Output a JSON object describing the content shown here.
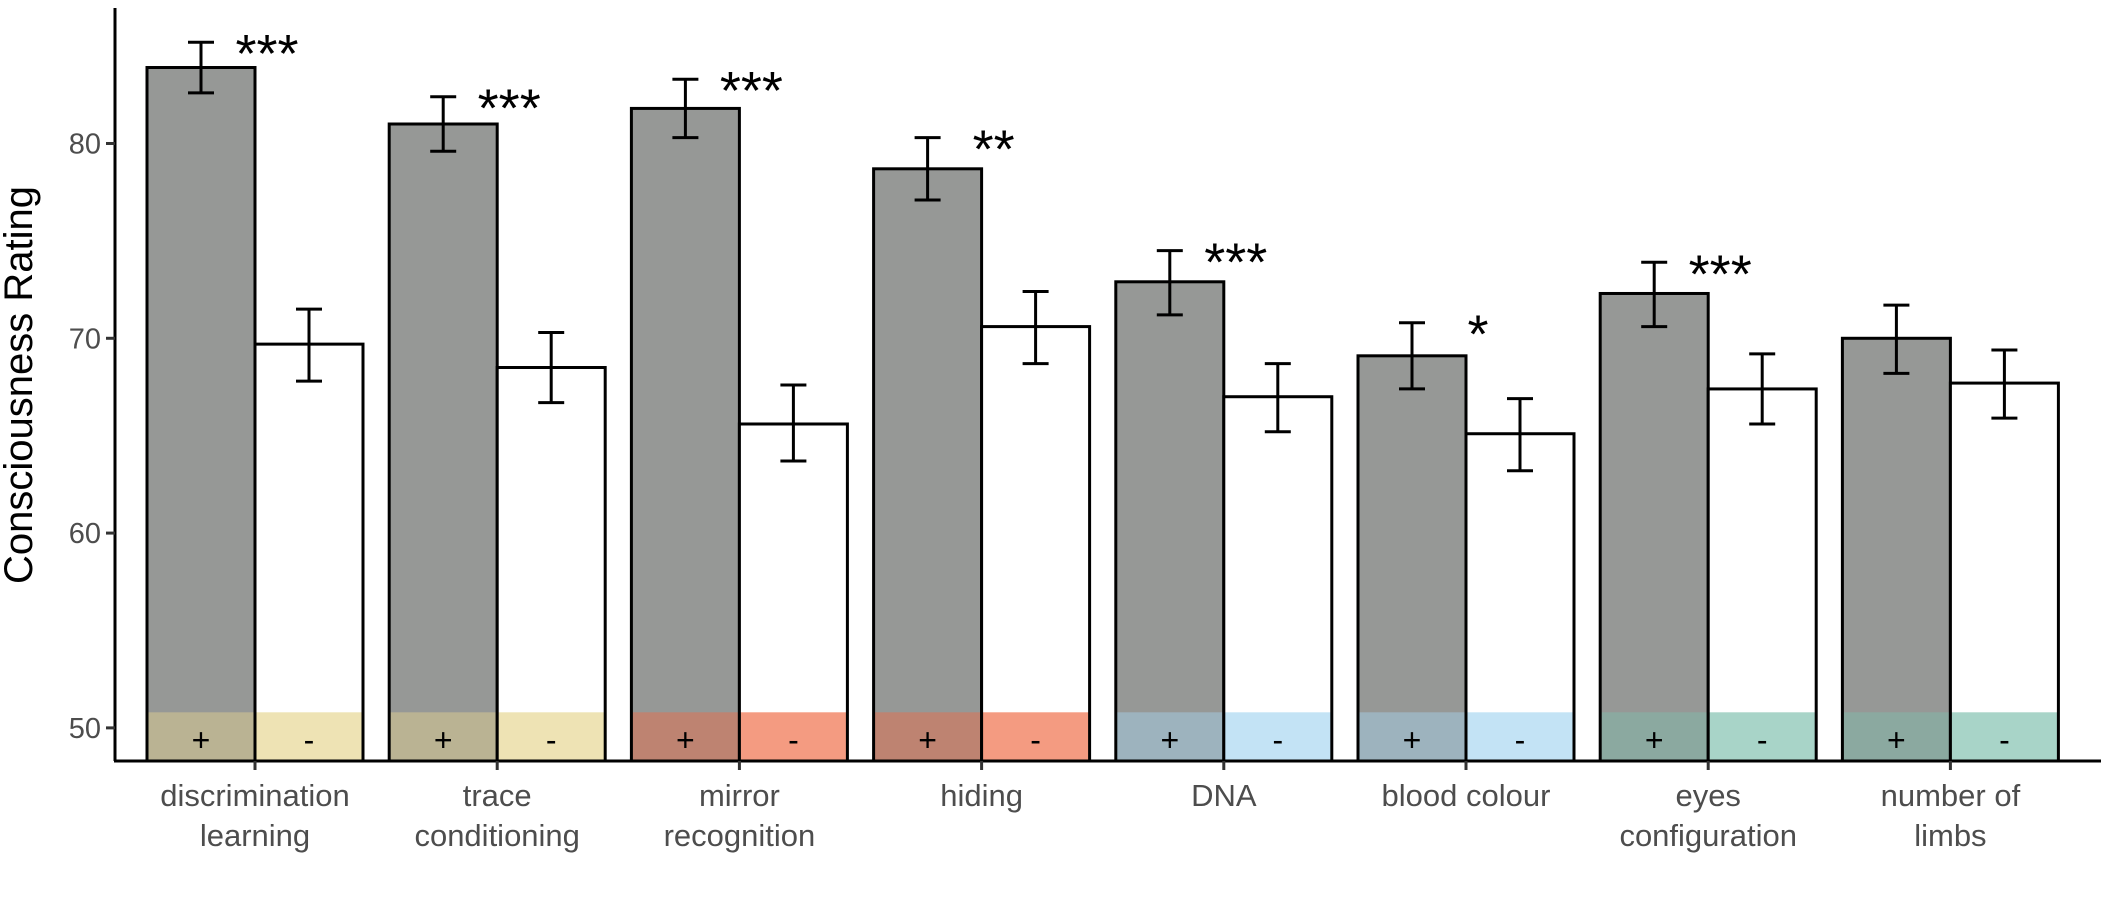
{
  "chart_data": {
    "type": "bar",
    "ylabel": "Consciousness Rating",
    "xlabel": "",
    "ylim": [
      48.3,
      86.8
    ],
    "yticks": [
      50,
      60,
      70,
      80
    ],
    "grid": false,
    "legend": "none",
    "categories": [
      {
        "lines": [
          "discrimination",
          "learning"
        ],
        "strip_color": "#E6D590"
      },
      {
        "lines": [
          "trace",
          "conditioning"
        ],
        "strip_color": "#E6D590"
      },
      {
        "lines": [
          "mirror",
          "recognition"
        ],
        "strip_color": "#EF6B45"
      },
      {
        "lines": [
          "hiding"
        ],
        "strip_color": "#EF6B45"
      },
      {
        "lines": [
          "DNA"
        ],
        "strip_color": "#A6D5F0"
      },
      {
        "lines": [
          "blood colour"
        ],
        "strip_color": "#A6D5F0"
      },
      {
        "lines": [
          "eyes",
          "configuration"
        ],
        "strip_color": "#7FBFAE"
      },
      {
        "lines": [
          "number of",
          "limbs"
        ],
        "strip_color": "#7FBFAE"
      }
    ],
    "series": [
      {
        "marker": "+",
        "color": "#969896",
        "values": [
          83.9,
          81.0,
          81.8,
          78.7,
          72.9,
          69.1,
          72.3,
          70.0
        ],
        "err_low": [
          82.6,
          79.6,
          80.3,
          77.1,
          71.2,
          67.4,
          70.6,
          68.2
        ],
        "err_high": [
          85.2,
          82.4,
          83.3,
          80.3,
          74.5,
          70.8,
          73.9,
          71.7
        ]
      },
      {
        "marker": "-",
        "color": "#ffffff",
        "values": [
          69.7,
          68.5,
          65.6,
          70.6,
          67.0,
          65.1,
          67.4,
          67.7
        ],
        "err_low": [
          67.8,
          66.7,
          63.7,
          68.7,
          65.2,
          63.2,
          65.6,
          65.9
        ],
        "err_high": [
          71.5,
          70.3,
          67.6,
          72.4,
          68.7,
          66.9,
          69.2,
          69.4
        ]
      }
    ],
    "significance": [
      "***",
      "***",
      "***",
      "**",
      "***",
      "*",
      "***",
      ""
    ],
    "strip_top": 50.8
  }
}
